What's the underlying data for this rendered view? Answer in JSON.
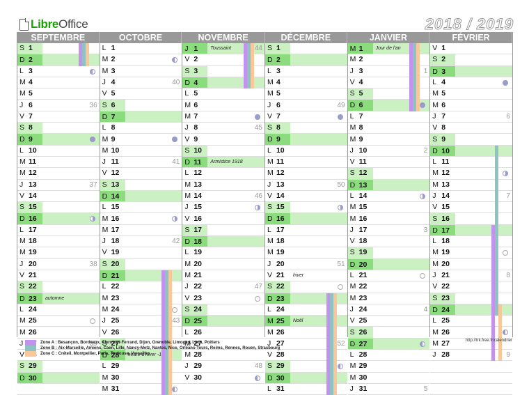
{
  "brand": {
    "part1": "Libre",
    "part2": "Office"
  },
  "title": "2018 / 2019",
  "colors": {
    "header_bg": "#999999",
    "weekend": "#cbf1c2",
    "sunday_day": "#8bdc7c",
    "zoneA": "#c392ec",
    "zoneB": "#8fc3c3",
    "zoneC": "#f8c79a",
    "moon": "#9a9acb"
  },
  "months": [
    {
      "name": "SEPTEMBRE",
      "days": [
        {
          "l": "S",
          "n": "1"
        },
        {
          "l": "D",
          "n": "2"
        },
        {
          "l": "L",
          "n": "3",
          "moon": "lq"
        },
        {
          "l": "M",
          "n": "4"
        },
        {
          "l": "M",
          "n": "5"
        },
        {
          "l": "J",
          "n": "6",
          "wk": "36"
        },
        {
          "l": "V",
          "n": "7"
        },
        {
          "l": "S",
          "n": "8"
        },
        {
          "l": "D",
          "n": "9",
          "moon": "new"
        },
        {
          "l": "L",
          "n": "10"
        },
        {
          "l": "M",
          "n": "11"
        },
        {
          "l": "M",
          "n": "12"
        },
        {
          "l": "J",
          "n": "13",
          "wk": "37"
        },
        {
          "l": "V",
          "n": "14"
        },
        {
          "l": "S",
          "n": "15"
        },
        {
          "l": "D",
          "n": "16",
          "moon": "fq"
        },
        {
          "l": "L",
          "n": "17"
        },
        {
          "l": "M",
          "n": "18"
        },
        {
          "l": "M",
          "n": "19"
        },
        {
          "l": "J",
          "n": "20",
          "wk": "38"
        },
        {
          "l": "V",
          "n": "21"
        },
        {
          "l": "S",
          "n": "22"
        },
        {
          "l": "D",
          "n": "23",
          "ev": "automne"
        },
        {
          "l": "L",
          "n": "24"
        },
        {
          "l": "M",
          "n": "25",
          "moon": "full"
        },
        {
          "l": "M",
          "n": "26"
        },
        {
          "l": "J",
          "n": "27",
          "wk": "39"
        },
        {
          "l": "V",
          "n": "28"
        },
        {
          "l": "S",
          "n": "29"
        },
        {
          "l": "D",
          "n": "30"
        }
      ]
    },
    {
      "name": "OCTOBRE",
      "days": [
        {
          "l": "L",
          "n": "1"
        },
        {
          "l": "M",
          "n": "2",
          "moon": "lq"
        },
        {
          "l": "M",
          "n": "3"
        },
        {
          "l": "J",
          "n": "4",
          "wk": "40"
        },
        {
          "l": "V",
          "n": "5"
        },
        {
          "l": "S",
          "n": "6"
        },
        {
          "l": "D",
          "n": "7"
        },
        {
          "l": "L",
          "n": "8"
        },
        {
          "l": "M",
          "n": "9",
          "moon": "new"
        },
        {
          "l": "M",
          "n": "10"
        },
        {
          "l": "J",
          "n": "11",
          "wk": "41"
        },
        {
          "l": "V",
          "n": "12"
        },
        {
          "l": "S",
          "n": "13"
        },
        {
          "l": "D",
          "n": "14"
        },
        {
          "l": "L",
          "n": "15"
        },
        {
          "l": "M",
          "n": "16",
          "moon": "fq"
        },
        {
          "l": "M",
          "n": "17"
        },
        {
          "l": "J",
          "n": "18",
          "wk": "42"
        },
        {
          "l": "V",
          "n": "19"
        },
        {
          "l": "S",
          "n": "20"
        },
        {
          "l": "D",
          "n": "21"
        },
        {
          "l": "L",
          "n": "22"
        },
        {
          "l": "M",
          "n": "23"
        },
        {
          "l": "M",
          "n": "24",
          "moon": "full"
        },
        {
          "l": "J",
          "n": "25",
          "wk": "43"
        },
        {
          "l": "V",
          "n": "26"
        },
        {
          "l": "S",
          "n": "27"
        },
        {
          "l": "D",
          "n": "28",
          "ev": "heure d'hiver -1h"
        },
        {
          "l": "L",
          "n": "29"
        },
        {
          "l": "M",
          "n": "30"
        },
        {
          "l": "M",
          "n": "31",
          "moon": "lq"
        }
      ]
    },
    {
      "name": "NOVEMBRE",
      "days": [
        {
          "l": "J",
          "n": "1",
          "ev": "Toussaint",
          "wk": "44",
          "hol": true
        },
        {
          "l": "V",
          "n": "2"
        },
        {
          "l": "S",
          "n": "3"
        },
        {
          "l": "D",
          "n": "4"
        },
        {
          "l": "L",
          "n": "5"
        },
        {
          "l": "M",
          "n": "6"
        },
        {
          "l": "M",
          "n": "7",
          "moon": "new"
        },
        {
          "l": "J",
          "n": "8",
          "wk": "45"
        },
        {
          "l": "V",
          "n": "9"
        },
        {
          "l": "S",
          "n": "10"
        },
        {
          "l": "D",
          "n": "11",
          "ev": "Armistice 1918"
        },
        {
          "l": "L",
          "n": "12"
        },
        {
          "l": "M",
          "n": "13"
        },
        {
          "l": "M",
          "n": "14",
          "wk": "46"
        },
        {
          "l": "J",
          "n": "15",
          "moon": "fq"
        },
        {
          "l": "V",
          "n": "16"
        },
        {
          "l": "S",
          "n": "17"
        },
        {
          "l": "D",
          "n": "18"
        },
        {
          "l": "L",
          "n": "19"
        },
        {
          "l": "M",
          "n": "20"
        },
        {
          "l": "M",
          "n": "21"
        },
        {
          "l": "J",
          "n": "22",
          "wk": "47"
        },
        {
          "l": "V",
          "n": "23",
          "moon": "full"
        },
        {
          "l": "S",
          "n": "24"
        },
        {
          "l": "D",
          "n": "25"
        },
        {
          "l": "L",
          "n": "26"
        },
        {
          "l": "M",
          "n": "27"
        },
        {
          "l": "M",
          "n": "28"
        },
        {
          "l": "J",
          "n": "29",
          "wk": "48"
        },
        {
          "l": "V",
          "n": "30",
          "moon": "lq"
        }
      ]
    },
    {
      "name": "DÉCEMBRE",
      "days": [
        {
          "l": "S",
          "n": "1"
        },
        {
          "l": "D",
          "n": "2"
        },
        {
          "l": "L",
          "n": "3"
        },
        {
          "l": "M",
          "n": "4"
        },
        {
          "l": "M",
          "n": "5"
        },
        {
          "l": "J",
          "n": "6",
          "wk": "49"
        },
        {
          "l": "V",
          "n": "7",
          "moon": "new"
        },
        {
          "l": "S",
          "n": "8"
        },
        {
          "l": "D",
          "n": "9"
        },
        {
          "l": "L",
          "n": "10"
        },
        {
          "l": "M",
          "n": "11"
        },
        {
          "l": "M",
          "n": "12"
        },
        {
          "l": "J",
          "n": "13",
          "wk": "50"
        },
        {
          "l": "V",
          "n": "14"
        },
        {
          "l": "S",
          "n": "15",
          "moon": "fq"
        },
        {
          "l": "D",
          "n": "16"
        },
        {
          "l": "L",
          "n": "17"
        },
        {
          "l": "M",
          "n": "18"
        },
        {
          "l": "M",
          "n": "19"
        },
        {
          "l": "J",
          "n": "20",
          "wk": "51"
        },
        {
          "l": "V",
          "n": "21",
          "ev": "hiver"
        },
        {
          "l": "S",
          "n": "22",
          "moon": "full"
        },
        {
          "l": "D",
          "n": "23"
        },
        {
          "l": "L",
          "n": "24"
        },
        {
          "l": "M",
          "n": "25",
          "ev": "Noël",
          "hol": true
        },
        {
          "l": "M",
          "n": "26"
        },
        {
          "l": "J",
          "n": "27",
          "wk": "52"
        },
        {
          "l": "V",
          "n": "28"
        },
        {
          "l": "S",
          "n": "29",
          "moon": "lq"
        },
        {
          "l": "D",
          "n": "30"
        },
        {
          "l": "L",
          "n": "31"
        }
      ]
    },
    {
      "name": "JANVIER",
      "days": [
        {
          "l": "M",
          "n": "1",
          "ev": "Jour de l'an",
          "hol": true
        },
        {
          "l": "M",
          "n": "2"
        },
        {
          "l": "J",
          "n": "3",
          "wk": "1"
        },
        {
          "l": "V",
          "n": "4"
        },
        {
          "l": "S",
          "n": "5"
        },
        {
          "l": "D",
          "n": "6",
          "moon": "new"
        },
        {
          "l": "L",
          "n": "7"
        },
        {
          "l": "M",
          "n": "8"
        },
        {
          "l": "M",
          "n": "9"
        },
        {
          "l": "J",
          "n": "10",
          "wk": "2"
        },
        {
          "l": "V",
          "n": "11"
        },
        {
          "l": "S",
          "n": "12"
        },
        {
          "l": "D",
          "n": "13"
        },
        {
          "l": "L",
          "n": "14",
          "moon": "fq"
        },
        {
          "l": "M",
          "n": "15"
        },
        {
          "l": "M",
          "n": "16"
        },
        {
          "l": "J",
          "n": "17",
          "wk": "3"
        },
        {
          "l": "V",
          "n": "18"
        },
        {
          "l": "S",
          "n": "19"
        },
        {
          "l": "D",
          "n": "20"
        },
        {
          "l": "L",
          "n": "21",
          "moon": "full"
        },
        {
          "l": "M",
          "n": "22"
        },
        {
          "l": "M",
          "n": "23"
        },
        {
          "l": "J",
          "n": "24",
          "wk": "4"
        },
        {
          "l": "V",
          "n": "25"
        },
        {
          "l": "S",
          "n": "26"
        },
        {
          "l": "D",
          "n": "27",
          "moon": "lq"
        },
        {
          "l": "L",
          "n": "28"
        },
        {
          "l": "M",
          "n": "29"
        },
        {
          "l": "M",
          "n": "30"
        },
        {
          "l": "J",
          "n": "31",
          "wk": "5"
        }
      ]
    },
    {
      "name": "FÉVRIER",
      "days": [
        {
          "l": "V",
          "n": "1"
        },
        {
          "l": "S",
          "n": "2"
        },
        {
          "l": "D",
          "n": "3"
        },
        {
          "l": "L",
          "n": "4",
          "moon": "new"
        },
        {
          "l": "M",
          "n": "5"
        },
        {
          "l": "M",
          "n": "6"
        },
        {
          "l": "J",
          "n": "7",
          "wk": "6"
        },
        {
          "l": "V",
          "n": "8"
        },
        {
          "l": "S",
          "n": "9"
        },
        {
          "l": "D",
          "n": "10"
        },
        {
          "l": "L",
          "n": "11"
        },
        {
          "l": "M",
          "n": "12",
          "moon": "fq"
        },
        {
          "l": "M",
          "n": "13"
        },
        {
          "l": "J",
          "n": "14",
          "wk": "7"
        },
        {
          "l": "V",
          "n": "15"
        },
        {
          "l": "S",
          "n": "16"
        },
        {
          "l": "D",
          "n": "17"
        },
        {
          "l": "L",
          "n": "18"
        },
        {
          "l": "M",
          "n": "19",
          "moon": "full"
        },
        {
          "l": "M",
          "n": "20"
        },
        {
          "l": "J",
          "n": "21",
          "wk": "8"
        },
        {
          "l": "V",
          "n": "22"
        },
        {
          "l": "S",
          "n": "23"
        },
        {
          "l": "D",
          "n": "24"
        },
        {
          "l": "L",
          "n": "25"
        },
        {
          "l": "M",
          "n": "26",
          "moon": "lq"
        },
        {
          "l": "M",
          "n": "27"
        },
        {
          "l": "J",
          "n": "28",
          "wk": "9"
        }
      ]
    }
  ],
  "vacations": [
    {
      "month": 0,
      "zone": "A",
      "from": 1,
      "to": 2
    },
    {
      "month": 0,
      "zone": "B",
      "from": 1,
      "to": 2
    },
    {
      "month": 0,
      "zone": "C",
      "from": 1,
      "to": 2
    },
    {
      "month": 1,
      "zone": "A",
      "from": 21,
      "to": 31
    },
    {
      "month": 1,
      "zone": "B",
      "from": 21,
      "to": 31
    },
    {
      "month": 1,
      "zone": "C",
      "from": 21,
      "to": 31
    },
    {
      "month": 2,
      "zone": "A",
      "from": 1,
      "to": 4
    },
    {
      "month": 2,
      "zone": "B",
      "from": 1,
      "to": 4
    },
    {
      "month": 2,
      "zone": "C",
      "from": 1,
      "to": 4
    },
    {
      "month": 3,
      "zone": "A",
      "from": 23,
      "to": 31
    },
    {
      "month": 3,
      "zone": "B",
      "from": 23,
      "to": 31
    },
    {
      "month": 3,
      "zone": "C",
      "from": 23,
      "to": 31
    },
    {
      "month": 4,
      "zone": "A",
      "from": 1,
      "to": 6
    },
    {
      "month": 4,
      "zone": "B",
      "from": 1,
      "to": 6
    },
    {
      "month": 4,
      "zone": "C",
      "from": 1,
      "to": 6
    },
    {
      "month": 5,
      "zone": "A",
      "from": 17,
      "to": 28
    },
    {
      "month": 5,
      "zone": "B",
      "from": 10,
      "to": 24
    },
    {
      "month": 5,
      "zone": "C",
      "from": 24,
      "to": 28
    }
  ],
  "legend": [
    {
      "zone": "A",
      "text": "Zone A : Besançon, Bordeaux, Clermont-Ferrand, Dijon, Grenoble, Limoges, Lyon, Poitiers"
    },
    {
      "zone": "B",
      "text": "Zone B : Aix-Marseille, Amiens, Caen, Lille, Nancy-Metz, Nantes, Nice, Orléans-Tours, Reims, Rennes, Rouen, Strasbourg"
    },
    {
      "zone": "C",
      "text": "Zone C : Créteil, Montpellier, Paris, Toulouse, Versailles"
    }
  ],
  "footer_url": "http://trk.free.fr/calendrier"
}
